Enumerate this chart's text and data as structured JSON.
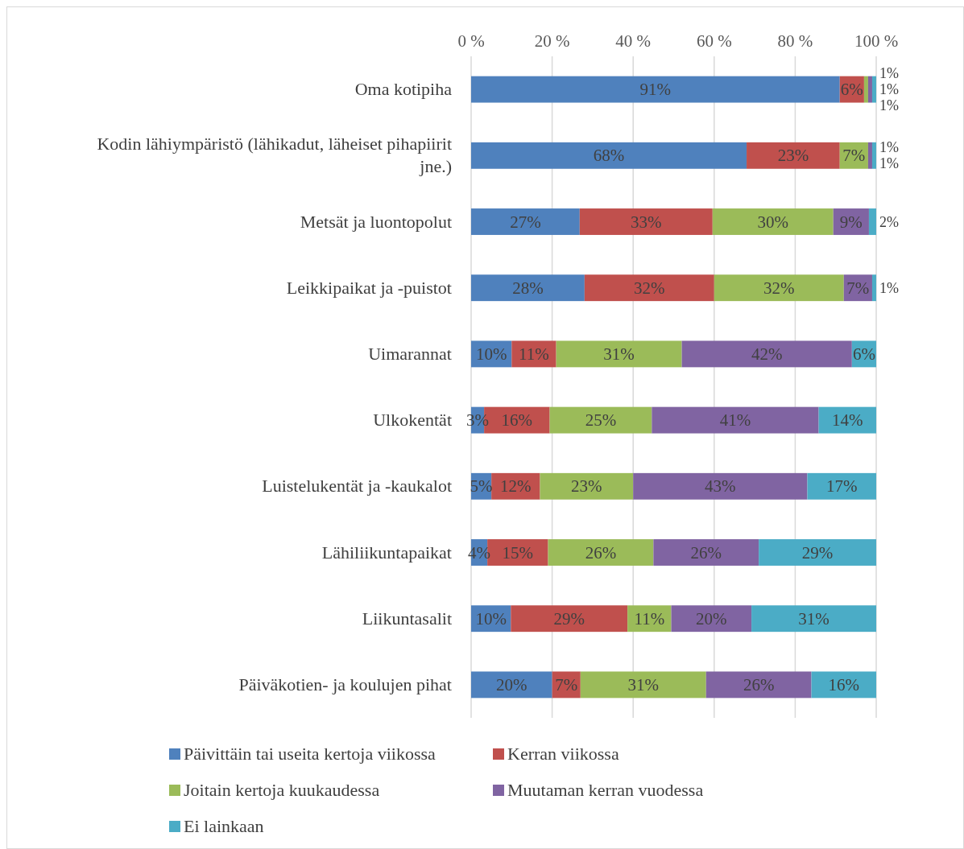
{
  "chart_data": {
    "type": "bar",
    "orientation": "horizontal",
    "stacked": true,
    "categories": [
      "Oma kotipiha",
      "Kodin lähiympäristö (lähikadut, läheiset pihapiirit jne.)",
      "Metsät ja luontopolut",
      "Leikkipaikat ja -puistot",
      "Uimarannat",
      "Ulkokentät",
      "Luistelukentät ja -kaukalot",
      "Lähiliikuntapaikat",
      "Liikuntasalit",
      "Päiväkotien- ja koulujen pihat"
    ],
    "series": [
      {
        "name": "Päivittäin tai useita kertoja viikossa",
        "color": "#4f81bd",
        "values": [
          91,
          68,
          26.8,
          28,
          10,
          3.2,
          5,
          4,
          9.8,
          20
        ],
        "value_labels": [
          "91%",
          "68%",
          "27%",
          "28%",
          "10%",
          "3%",
          "5%",
          "4%",
          "10%",
          "20%"
        ]
      },
      {
        "name": "Kerran viikossa",
        "color": "#c0504d",
        "values": [
          6,
          23,
          32.8,
          32,
          11,
          16.2,
          12,
          15,
          28.8,
          7
        ],
        "value_labels": [
          "6%",
          "23%",
          "33%",
          "32%",
          "11%",
          "16%",
          "12%",
          "15%",
          "29%",
          "7%"
        ]
      },
      {
        "name": "Joitain kertoja kuukaudessa",
        "color": "#9bbb59",
        "values": [
          1,
          7,
          29.8,
          32,
          31,
          25.2,
          23,
          26,
          10.8,
          31
        ],
        "value_labels": [
          "1%",
          "7%",
          "30%",
          "32%",
          "31%",
          "25%",
          "23%",
          "26%",
          "11%",
          "31%"
        ]
      },
      {
        "name": "Muutaman kerran vuodessa",
        "color": "#8064a2",
        "values": [
          1,
          1,
          8.8,
          7,
          42,
          41.2,
          43,
          26,
          19.8,
          26
        ],
        "value_labels": [
          "1%",
          "1%",
          "9%",
          "7%",
          "42%",
          "41%",
          "43%",
          "26%",
          "20%",
          "26%"
        ]
      },
      {
        "name": "Ei lainkaan",
        "color": "#4bacc6",
        "values": [
          1,
          1,
          1.8,
          1,
          6,
          14.2,
          17,
          29,
          30.8,
          16
        ],
        "value_labels": [
          "1%",
          "1%",
          "2%",
          "1%",
          "6%",
          "14%",
          "17%",
          "29%",
          "31%",
          "16%"
        ]
      }
    ],
    "xlim": [
      0,
      100
    ],
    "xticks": [
      {
        "value": 0,
        "label": "0 %"
      },
      {
        "value": 20,
        "label": "20 %"
      },
      {
        "value": 40,
        "label": "40 %"
      },
      {
        "value": 60,
        "label": "60 %"
      },
      {
        "value": 80,
        "label": "80 %"
      },
      {
        "value": 100,
        "label": "100 %"
      }
    ],
    "grid": "x",
    "legend": "bottom"
  }
}
